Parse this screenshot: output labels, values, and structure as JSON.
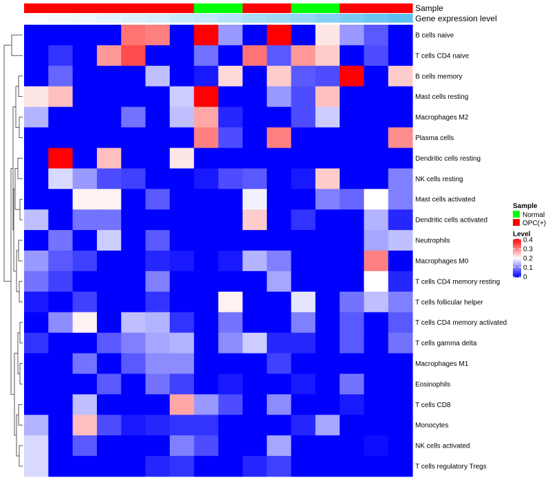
{
  "chart_data": {
    "type": "heatmap",
    "annotation_labels": [
      "Sample",
      "Gene expression level"
    ],
    "columns": {
      "sample": [
        "OPC(+)",
        "OPC(+)",
        "OPC(+)",
        "OPC(+)",
        "OPC(+)",
        "OPC(+)",
        "OPC(+)",
        "Normal",
        "Normal",
        "OPC(+)",
        "OPC(+)",
        "Normal",
        "Normal",
        "OPC(+)",
        "OPC(+)",
        "OPC(+)"
      ],
      "expression_level": [
        0.02,
        0.04,
        0.07,
        0.1,
        0.13,
        0.16,
        0.2,
        0.23,
        0.28,
        0.32,
        0.36,
        0.4,
        0.45,
        0.5,
        0.55,
        0.6
      ]
    },
    "rows": [
      "B cells naive",
      "T cells CD4 naive",
      "B cells memory",
      "Mast cells resting",
      "Macrophages M2",
      "Plasma cells",
      "Dendritic cells resting",
      "NK cells resting",
      "Mast cells activated",
      "Dendritic cells activated",
      "Neutrophils",
      "Macrophages M0",
      "T cells CD4 memory resting",
      "T cells follicular helper",
      "T cells CD4 memory activated",
      "T cells gamma delta",
      "Macrophages M1",
      "Eosinophils",
      "T cells CD8",
      "Monocytes",
      "NK cells activated",
      "T cells regulatory  Tregs"
    ],
    "values": [
      [
        0,
        0,
        0,
        0,
        0.31,
        0.3,
        0,
        0.4,
        0.12,
        0,
        0.4,
        0,
        0.22,
        0.12,
        0.07,
        0
      ],
      [
        0,
        0.04,
        0,
        0.28,
        0.34,
        0,
        0,
        0.09,
        0,
        0.31,
        0.07,
        0.28,
        0.24,
        0,
        0.06,
        0
      ],
      [
        0,
        0.08,
        0,
        0,
        0,
        0.15,
        0,
        0.02,
        0.23,
        0,
        0.24,
        0.07,
        0.06,
        0.4,
        0,
        0.24
      ],
      [
        0.22,
        0.25,
        0,
        0,
        0,
        0,
        0.16,
        0.4,
        0,
        0,
        0.12,
        0.06,
        0.25,
        0,
        0,
        0
      ],
      [
        0.14,
        0,
        0,
        0,
        0.09,
        0,
        0.15,
        0.27,
        0.03,
        0,
        0,
        0.06,
        0.16,
        0,
        0,
        0
      ],
      [
        0,
        0,
        0,
        0,
        0,
        0,
        0,
        0.3,
        0.06,
        0,
        0.3,
        0,
        0,
        0,
        0,
        0.29
      ],
      [
        0,
        0.4,
        0,
        0.25,
        0,
        0,
        0.22,
        0,
        0,
        0,
        0,
        0,
        0,
        0,
        0,
        0
      ],
      [
        0,
        0.17,
        0.12,
        0.06,
        0.05,
        0,
        0,
        0.02,
        0.06,
        0.07,
        0,
        0.02,
        0.24,
        0,
        0,
        0.1
      ],
      [
        0,
        0,
        0.21,
        0.21,
        0,
        0.07,
        0,
        0,
        0,
        0.19,
        0,
        0,
        0.1,
        0.08,
        0.2,
        0.1
      ],
      [
        0.15,
        0,
        0.09,
        0.09,
        0,
        0,
        0,
        0,
        0,
        0.24,
        0,
        0.04,
        0,
        0,
        0.14,
        0.03
      ],
      [
        0,
        0.09,
        0,
        0.16,
        0,
        0.07,
        0,
        0,
        0,
        0,
        0,
        0,
        0,
        0,
        0.13,
        0.15
      ],
      [
        0.12,
        0.07,
        0.05,
        0,
        0,
        0.03,
        0.02,
        0,
        0.02,
        0.14,
        0.1,
        0,
        0,
        0,
        0.3,
        0
      ],
      [
        0.09,
        0.05,
        0,
        0,
        0,
        0.1,
        0,
        0,
        0,
        0,
        0.13,
        0,
        0,
        0,
        0.2,
        0.03
      ],
      [
        0.02,
        0,
        0.05,
        0,
        0,
        0.04,
        0,
        0,
        0.21,
        0,
        0,
        0.18,
        0,
        0.09,
        0.15,
        0.1
      ],
      [
        0,
        0.11,
        0.21,
        0,
        0.15,
        0.14,
        0.04,
        0,
        0.09,
        0,
        0,
        0.1,
        0,
        0.07,
        0,
        0.07
      ],
      [
        0.04,
        0,
        0,
        0.07,
        0.1,
        0.13,
        0.14,
        0,
        0.11,
        0.16,
        0.03,
        0.03,
        0,
        0.07,
        0,
        0.09
      ],
      [
        0,
        0,
        0.09,
        0,
        0.07,
        0.11,
        0.11,
        0,
        0,
        0,
        0.05,
        0,
        0,
        0,
        0,
        0
      ],
      [
        0,
        0,
        0,
        0.07,
        0,
        0.09,
        0.05,
        0,
        0.02,
        0,
        0,
        0.02,
        0,
        0.09,
        0,
        0
      ],
      [
        0,
        0,
        0.15,
        0,
        0,
        0,
        0.27,
        0.12,
        0.06,
        0,
        0.11,
        0,
        0,
        0.02,
        0,
        0
      ],
      [
        0.14,
        0,
        0.25,
        0.06,
        0.02,
        0.03,
        0.04,
        0.04,
        0,
        0,
        0,
        0.03,
        0.13,
        0,
        0,
        0
      ],
      [
        0.17,
        0,
        0.07,
        0,
        0,
        0,
        0.1,
        0.06,
        0,
        0,
        0.13,
        0,
        0,
        0,
        0.01,
        0
      ],
      [
        0.17,
        0,
        0,
        0,
        0,
        0.03,
        0.04,
        0,
        0,
        0.03,
        0.05,
        0,
        0,
        0,
        0,
        0
      ]
    ],
    "color_scale": {
      "min": 0,
      "mid": 0.2,
      "max": 0.4,
      "low": "#0000ff",
      "midColor": "#ffffff",
      "high": "#ff0000"
    },
    "legend": {
      "position": "right",
      "sample_title": "Sample",
      "sample_entries": [
        {
          "label": "Normal",
          "color": "#00ff00"
        },
        {
          "label": "OPC(+)",
          "color": "#ff0000"
        }
      ],
      "level_title": "Level",
      "level_ticks": [
        "0.4",
        "0.3",
        "0.2",
        "0.1",
        "0"
      ]
    },
    "row_dendrogram": true
  }
}
